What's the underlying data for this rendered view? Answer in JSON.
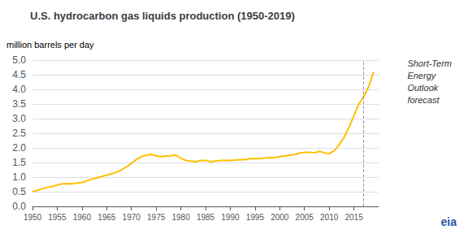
{
  "chart_data": {
    "type": "line",
    "title": "U.S. hydrocarbon gas liquids production (1950-2019)",
    "ylabel": "million barrels per day",
    "annotations": [
      "Short-Term\nEnergy\nOutlook\nforecast",
      "eia"
    ],
    "forecast_year": 2017,
    "color": "#FFC000",
    "x": [
      1950,
      1951,
      1952,
      1953,
      1954,
      1955,
      1956,
      1957,
      1958,
      1959,
      1960,
      1961,
      1962,
      1963,
      1964,
      1965,
      1966,
      1967,
      1968,
      1969,
      1970,
      1971,
      1972,
      1973,
      1974,
      1975,
      1976,
      1977,
      1978,
      1979,
      1980,
      1981,
      1982,
      1983,
      1984,
      1985,
      1986,
      1987,
      1988,
      1989,
      1990,
      1991,
      1992,
      1993,
      1994,
      1995,
      1996,
      1997,
      1998,
      1999,
      2000,
      2001,
      2002,
      2003,
      2004,
      2005,
      2006,
      2007,
      2008,
      2009,
      2010,
      2011,
      2012,
      2013,
      2014,
      2015,
      2016,
      2017,
      2018,
      2019
    ],
    "values": [
      0.5,
      0.55,
      0.6,
      0.65,
      0.68,
      0.73,
      0.77,
      0.78,
      0.77,
      0.8,
      0.82,
      0.87,
      0.93,
      0.97,
      1.02,
      1.07,
      1.12,
      1.17,
      1.25,
      1.35,
      1.47,
      1.6,
      1.7,
      1.75,
      1.78,
      1.73,
      1.7,
      1.72,
      1.73,
      1.75,
      1.65,
      1.57,
      1.55,
      1.53,
      1.57,
      1.57,
      1.53,
      1.55,
      1.57,
      1.57,
      1.57,
      1.58,
      1.6,
      1.6,
      1.63,
      1.63,
      1.63,
      1.65,
      1.67,
      1.67,
      1.7,
      1.72,
      1.75,
      1.77,
      1.82,
      1.85,
      1.85,
      1.83,
      1.88,
      1.83,
      1.8,
      1.9,
      2.1,
      2.35,
      2.7,
      3.1,
      3.5,
      3.75,
      4.1,
      4.6
    ],
    "xlim": [
      1950,
      2020
    ],
    "ylim": [
      0.0,
      5.0
    ],
    "xticks": [
      1950,
      1955,
      1960,
      1965,
      1970,
      1975,
      1980,
      1985,
      1990,
      1995,
      2000,
      2005,
      2010,
      2015
    ],
    "yticks": [
      {
        "value": 0,
        "label": "0.0"
      },
      0.5,
      {
        "value": 1,
        "label": "1.0"
      },
      1.5,
      {
        "value": 2,
        "label": "2.0"
      },
      2.5,
      {
        "value": 3,
        "label": "3.0"
      },
      3.5,
      {
        "value": 4,
        "label": "4.0"
      },
      4.5,
      {
        "value": 5,
        "label": "5.0"
      }
    ],
    "grid": true
  }
}
